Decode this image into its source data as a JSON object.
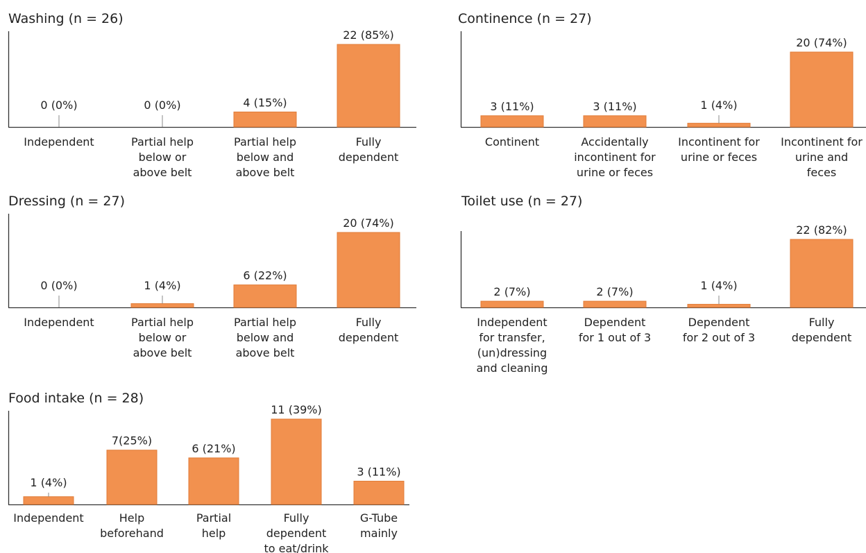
{
  "bar_color": "#f2914f",
  "bar_stroke": "#e07c38",
  "chart_data": [
    {
      "type": "bar",
      "title": "Washing (n = 26)",
      "categories": [
        [
          "Independent"
        ],
        [
          "Partial help",
          "below or",
          "above belt"
        ],
        [
          "Partial help",
          "below and",
          "above belt"
        ],
        [
          "Fully",
          "dependent"
        ]
      ],
      "values": [
        0,
        0,
        4,
        22
      ],
      "labels": [
        "0 (0%)",
        "0 (0%)",
        "4 (15%)",
        "22 (85%)"
      ],
      "ylim": [
        0,
        22
      ]
    },
    {
      "type": "bar",
      "title": "Continence (n = 27)",
      "categories": [
        [
          "Continent"
        ],
        [
          "Accidentally",
          "incontinent for",
          "urine or feces"
        ],
        [
          "Incontinent for",
          "urine or feces"
        ],
        [
          "Incontinent for",
          "urine and",
          "feces"
        ]
      ],
      "values": [
        3,
        3,
        1,
        20
      ],
      "labels": [
        "3 (11%)",
        "3 (11%)",
        "1 (4%)",
        "20 (74%)"
      ],
      "ylim": [
        0,
        20
      ]
    },
    {
      "type": "bar",
      "title": "Dressing (n = 27)",
      "categories": [
        [
          "Independent"
        ],
        [
          "Partial help",
          "below or",
          "above belt"
        ],
        [
          "Partial help",
          "below and",
          "above belt"
        ],
        [
          "Fully",
          "dependent"
        ]
      ],
      "values": [
        0,
        1,
        6,
        20
      ],
      "labels": [
        "0 (0%)",
        "1 (4%)",
        "6 (22%)",
        "20 (74%)"
      ],
      "ylim": [
        0,
        20
      ]
    },
    {
      "type": "bar",
      "title": "Toilet use (n = 27)",
      "categories": [
        [
          "Independent",
          "for transfer,",
          "(un)dressing",
          "and cleaning"
        ],
        [
          "Dependent",
          "for 1 out of 3"
        ],
        [
          "Dependent",
          "for 2 out of 3"
        ],
        [
          "Fully",
          "dependent"
        ]
      ],
      "values": [
        2,
        2,
        1,
        22
      ],
      "labels": [
        "2 (7%)",
        "2 (7%)",
        "1 (4%)",
        "22 (82%)"
      ],
      "ylim": [
        0,
        22
      ]
    },
    {
      "type": "bar",
      "title": "Food intake (n = 28)",
      "categories": [
        [
          "Independent"
        ],
        [
          "Help",
          "beforehand"
        ],
        [
          "Partial",
          "help"
        ],
        [
          "Fully",
          "dependent",
          "to eat/drink"
        ],
        [
          "G-Tube",
          "mainly"
        ]
      ],
      "values": [
        1,
        7,
        6,
        11,
        3
      ],
      "labels": [
        "1 (4%)",
        "7(25%)",
        "6 (21%)",
        "11 (39%)",
        "3 (11%)"
      ],
      "ylim": [
        0,
        11
      ]
    }
  ]
}
